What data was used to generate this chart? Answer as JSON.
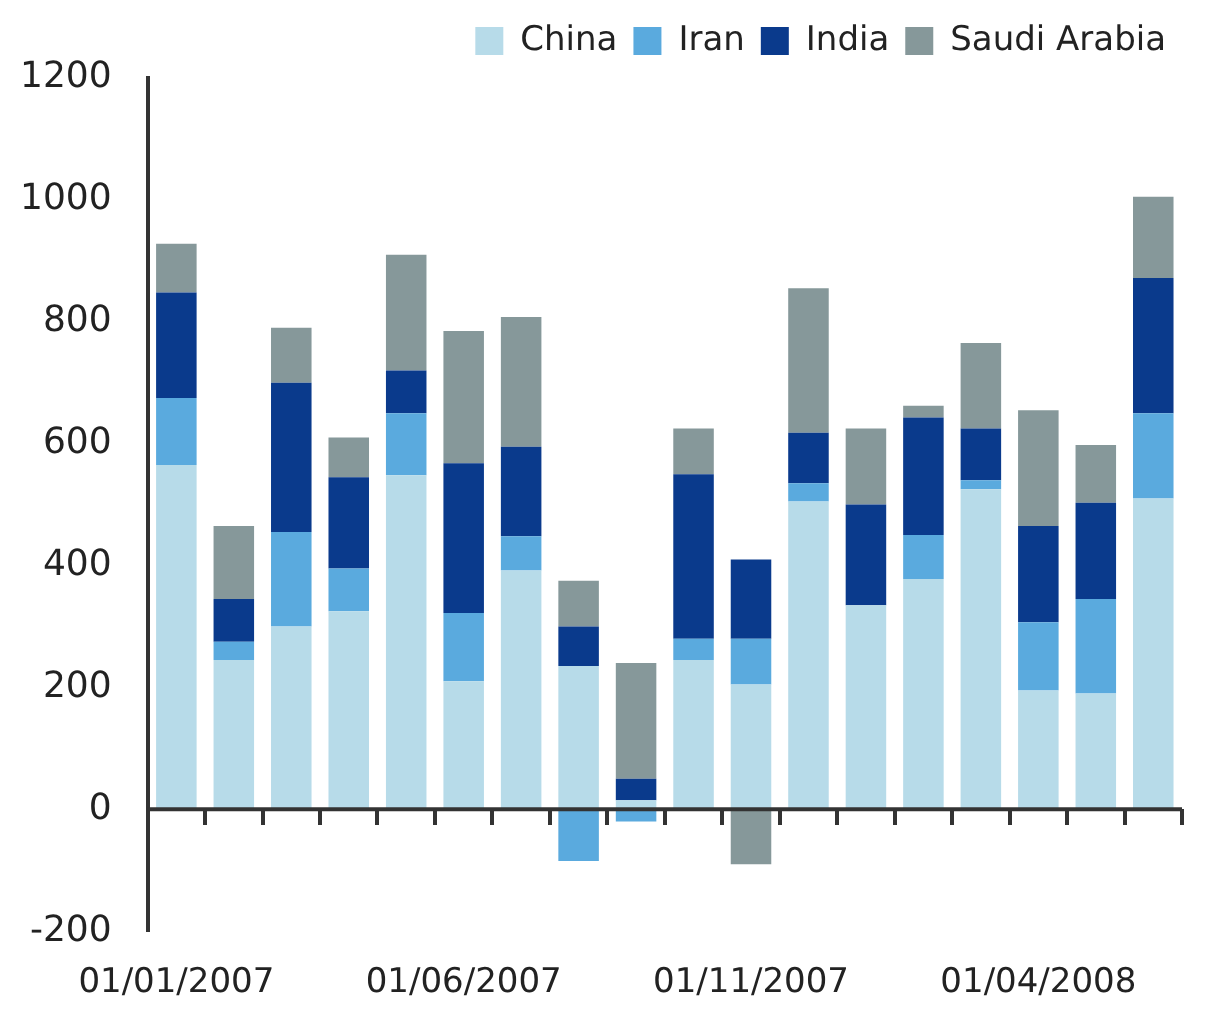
{
  "chart_data": {
    "type": "bar",
    "stacked": true,
    "categories": [
      "01/01/2007",
      null,
      null,
      null,
      null,
      "01/06/2007",
      null,
      null,
      null,
      null,
      "01/11/2007",
      null,
      null,
      null,
      null,
      "01/04/2008",
      null,
      null
    ],
    "series": [
      {
        "name": "China",
        "color": "#b7dbe9",
        "values": [
          565,
          245,
          300,
          325,
          548,
          210,
          392,
          235,
          15,
          245,
          205,
          505,
          335,
          378,
          525,
          195,
          190,
          510
        ]
      },
      {
        "name": "Iran",
        "color": "#5aaade",
        "values": [
          110,
          30,
          155,
          70,
          102,
          112,
          56,
          -85,
          -20,
          35,
          75,
          30,
          0,
          72,
          15,
          112,
          155,
          140
        ]
      },
      {
        "name": "India",
        "color": "#0a3a8c",
        "values": [
          173,
          70,
          245,
          150,
          70,
          246,
          147,
          65,
          35,
          270,
          130,
          83,
          165,
          193,
          85,
          158,
          158,
          222
        ]
      },
      {
        "name": "Saudi Arabia",
        "color": "#86989a",
        "values": [
          80,
          120,
          90,
          65,
          190,
          217,
          213,
          75,
          190,
          75,
          -90,
          237,
          125,
          19,
          140,
          190,
          95,
          133
        ]
      }
    ],
    "ylim": [
      -200,
      1200
    ],
    "yticks": [
      -200,
      0,
      200,
      400,
      600,
      800,
      1000,
      1200
    ],
    "grid": false,
    "ref_lines": [
      {
        "axis": "y",
        "value": 0,
        "color": "#333333"
      }
    ],
    "legend": "top"
  }
}
